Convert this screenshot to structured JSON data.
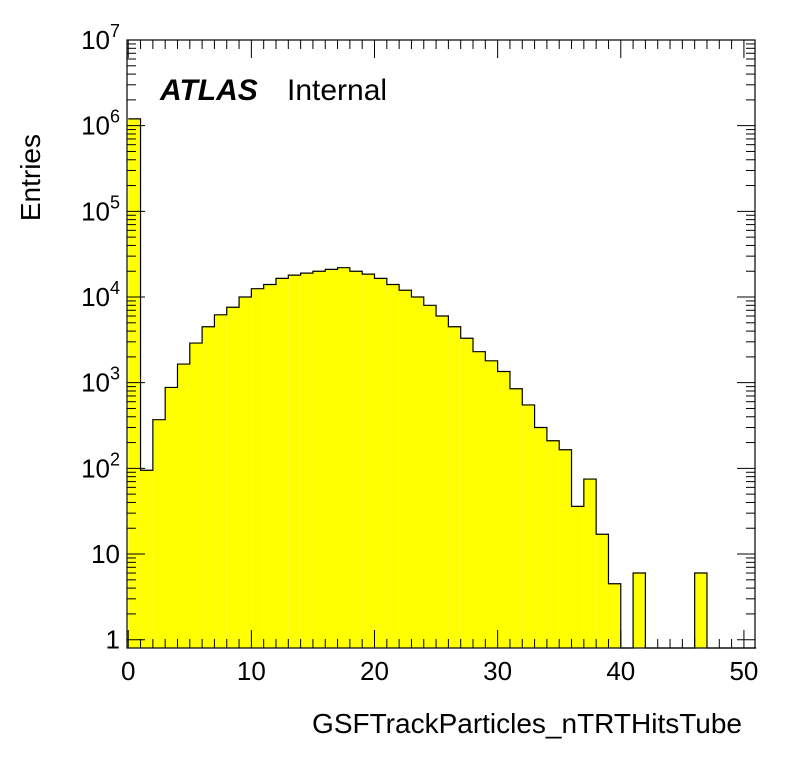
{
  "chart_data": {
    "type": "histogram",
    "title": "",
    "xlabel": "GSFTrackParticles_nTRTHitsTube",
    "ylabel": "Entries",
    "xlim": [
      -0.1,
      50.9
    ],
    "ylim": [
      0.8,
      10000000
    ],
    "yscale": "log",
    "bin_width": 1,
    "grid": false,
    "fill_color": "#ffff00",
    "line_color": "#000000",
    "x_tick_labels": [
      "0",
      "10",
      "20",
      "30",
      "40",
      "50"
    ],
    "y_tick_labels": [
      "1",
      "10",
      "10^2",
      "10^3",
      "10^4",
      "10^5",
      "10^6",
      "10^7"
    ],
    "annotation": {
      "bold": "ATLAS",
      "text": "Internal"
    },
    "bins": [
      {
        "x": 0,
        "y": 1200000
      },
      {
        "x": 1,
        "y": 95
      },
      {
        "x": 2,
        "y": 370
      },
      {
        "x": 3,
        "y": 880
      },
      {
        "x": 4,
        "y": 1650
      },
      {
        "x": 5,
        "y": 2900
      },
      {
        "x": 6,
        "y": 4500
      },
      {
        "x": 7,
        "y": 6200
      },
      {
        "x": 8,
        "y": 7600
      },
      {
        "x": 9,
        "y": 10000
      },
      {
        "x": 10,
        "y": 12500
      },
      {
        "x": 11,
        "y": 14000
      },
      {
        "x": 12,
        "y": 16500
      },
      {
        "x": 13,
        "y": 18000
      },
      {
        "x": 14,
        "y": 19000
      },
      {
        "x": 15,
        "y": 20000
      },
      {
        "x": 16,
        "y": 21000
      },
      {
        "x": 17,
        "y": 22000
      },
      {
        "x": 18,
        "y": 20000
      },
      {
        "x": 19,
        "y": 18500
      },
      {
        "x": 20,
        "y": 16500
      },
      {
        "x": 21,
        "y": 14000
      },
      {
        "x": 22,
        "y": 12000
      },
      {
        "x": 23,
        "y": 10000
      },
      {
        "x": 24,
        "y": 8000
      },
      {
        "x": 25,
        "y": 6000
      },
      {
        "x": 26,
        "y": 4500
      },
      {
        "x": 27,
        "y": 3300
      },
      {
        "x": 28,
        "y": 2300
      },
      {
        "x": 29,
        "y": 1800
      },
      {
        "x": 30,
        "y": 1350
      },
      {
        "x": 31,
        "y": 850
      },
      {
        "x": 32,
        "y": 550
      },
      {
        "x": 33,
        "y": 300
      },
      {
        "x": 34,
        "y": 210
      },
      {
        "x": 35,
        "y": 165
      },
      {
        "x": 36,
        "y": 36
      },
      {
        "x": 37,
        "y": 75
      },
      {
        "x": 38,
        "y": 17
      },
      {
        "x": 39,
        "y": 4.5
      },
      {
        "x": 40,
        "y": 0
      },
      {
        "x": 41,
        "y": 6
      },
      {
        "x": 42,
        "y": 0
      },
      {
        "x": 43,
        "y": 0
      },
      {
        "x": 44,
        "y": 0
      },
      {
        "x": 45,
        "y": 0
      },
      {
        "x": 46,
        "y": 6
      },
      {
        "x": 47,
        "y": 0
      },
      {
        "x": 48,
        "y": 0
      },
      {
        "x": 49,
        "y": 0
      },
      {
        "x": 50,
        "y": 0
      }
    ]
  }
}
